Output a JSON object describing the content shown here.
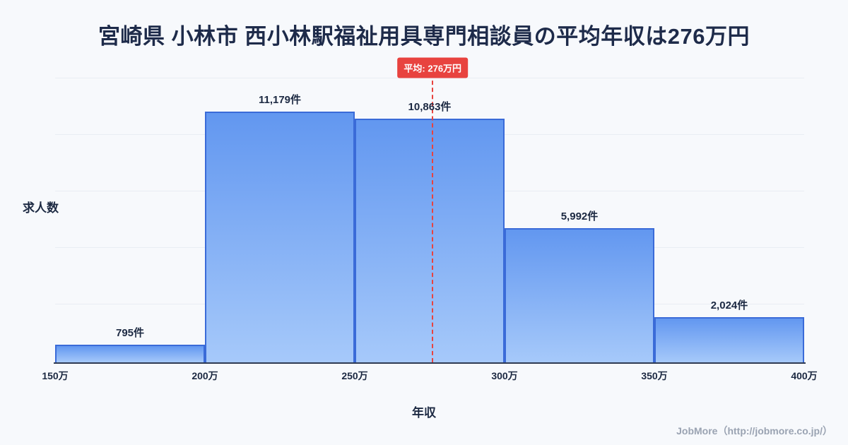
{
  "title": "宮崎県 小林市 西小林駅福祉用具専門相談員の平均年収は276万円",
  "chart_data": {
    "type": "bar",
    "subtype": "histogram",
    "categories": [
      "150万-200万",
      "200万-250万",
      "250万-300万",
      "300万-350万",
      "350万-400万"
    ],
    "values": [
      795,
      11179,
      10863,
      5992,
      2024
    ],
    "value_labels": [
      "795件",
      "11,179件",
      "10,863件",
      "5,992件",
      "2,024件"
    ],
    "x_tick_labels": [
      "150万",
      "200万",
      "250万",
      "300万",
      "350万",
      "400万"
    ],
    "x_range": [
      150,
      400
    ],
    "ylim": [
      0,
      12700
    ],
    "xlabel": "年収",
    "ylabel": "求人数",
    "grid": "horizontal",
    "average_value": 276,
    "average_label": "平均: 276万円",
    "colors": {
      "bar_fill_top": "#6297f0",
      "bar_fill_bottom": "#a6c9fa",
      "bar_border": "#3a6bd8",
      "average_line": "#e8433f",
      "title_text": "#1e2b4a",
      "background": "#f7f9fc"
    }
  },
  "footer": {
    "credit": "JobMore（http://jobmore.co.jp/）"
  }
}
